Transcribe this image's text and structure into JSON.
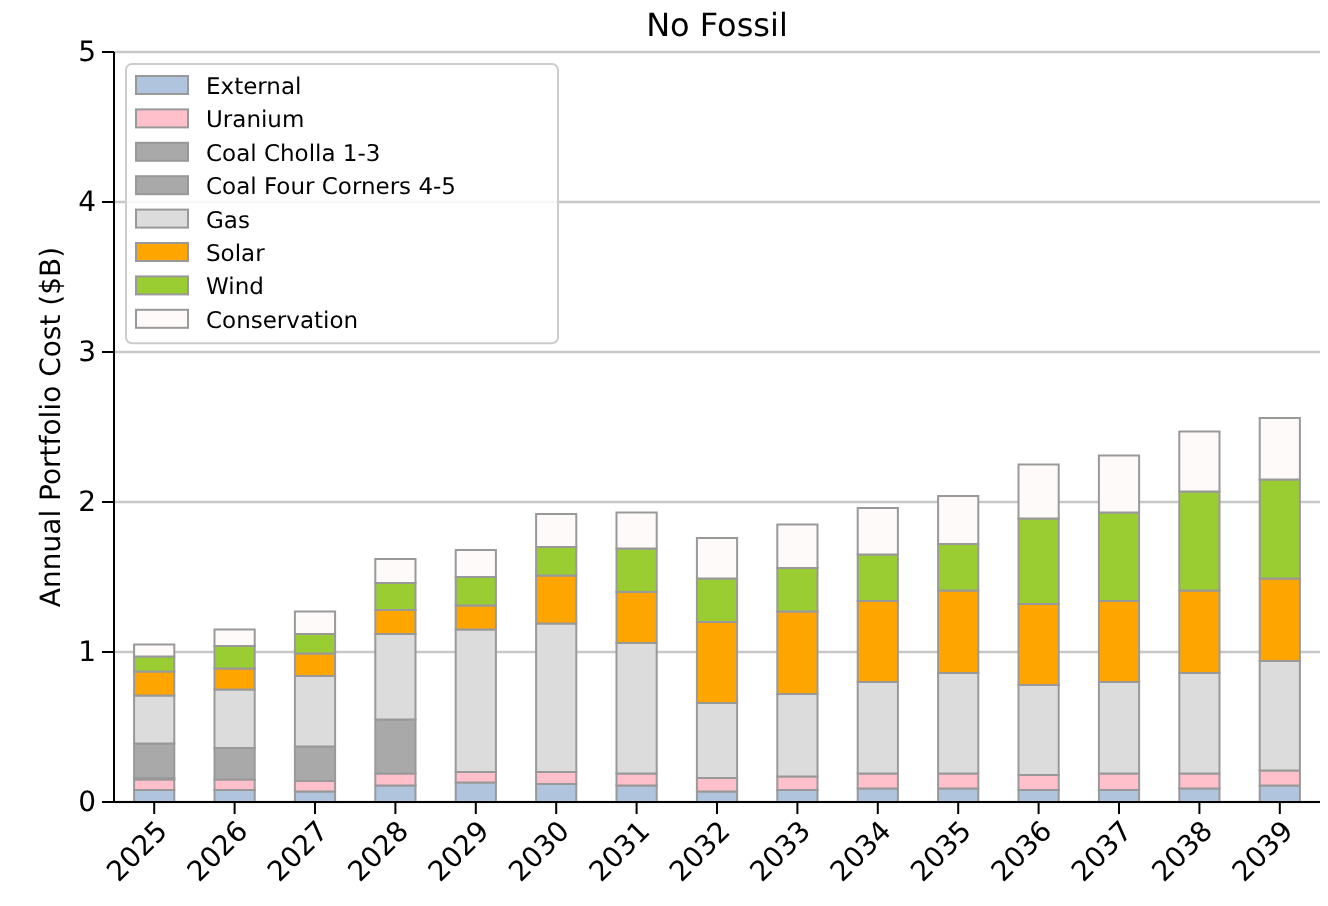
{
  "chart_data": {
    "type": "bar",
    "title": "No Fossil",
    "ylabel": "Annual Portfolio Cost ($B)",
    "stacked": true,
    "grid": "y",
    "legend": "top left",
    "categories": [
      "2025",
      "2026",
      "2027",
      "2028",
      "2029",
      "2030",
      "2031",
      "2032",
      "2033",
      "2034",
      "2035",
      "2036",
      "2037",
      "2038",
      "2039"
    ],
    "ylim": [
      0,
      5
    ],
    "yticks": [
      0,
      1,
      2,
      3,
      4,
      5
    ],
    "series": [
      {
        "name": "External",
        "color": "#b0c4de",
        "values": [
          0.08,
          0.08,
          0.07,
          0.11,
          0.13,
          0.12,
          0.11,
          0.07,
          0.08,
          0.09,
          0.09,
          0.08,
          0.08,
          0.09,
          0.11
        ]
      },
      {
        "name": "Uranium",
        "color": "#ffc0cb",
        "values": [
          0.07,
          0.07,
          0.07,
          0.08,
          0.07,
          0.08,
          0.08,
          0.09,
          0.09,
          0.1,
          0.1,
          0.1,
          0.11,
          0.1,
          0.1
        ]
      },
      {
        "name": "Coal Cholla 1-3",
        "color": "#a9a9a9",
        "values": [
          0.01,
          0,
          0,
          0,
          0,
          0,
          0,
          0,
          0,
          0,
          0,
          0,
          0,
          0,
          0
        ]
      },
      {
        "name": "Coal Four Corners 4-5",
        "color": "#a9a9a9",
        "values": [
          0.23,
          0.21,
          0.23,
          0.36,
          0,
          0,
          0,
          0,
          0,
          0,
          0,
          0,
          0,
          0,
          0
        ]
      },
      {
        "name": "Gas",
        "color": "#dcdcdc",
        "values": [
          0.32,
          0.39,
          0.47,
          0.57,
          0.95,
          0.99,
          0.87,
          0.5,
          0.55,
          0.61,
          0.67,
          0.6,
          0.61,
          0.67,
          0.73
        ]
      },
      {
        "name": "Solar",
        "color": "#ffa500",
        "values": [
          0.16,
          0.14,
          0.15,
          0.16,
          0.16,
          0.32,
          0.34,
          0.54,
          0.55,
          0.54,
          0.55,
          0.54,
          0.54,
          0.55,
          0.55
        ]
      },
      {
        "name": "Wind",
        "color": "#9acd32",
        "values": [
          0.1,
          0.15,
          0.13,
          0.18,
          0.19,
          0.19,
          0.29,
          0.29,
          0.29,
          0.31,
          0.31,
          0.57,
          0.59,
          0.66,
          0.66
        ]
      },
      {
        "name": "Conservation",
        "color": "#fffafa",
        "values": [
          0.08,
          0.11,
          0.15,
          0.16,
          0.18,
          0.22,
          0.24,
          0.27,
          0.29,
          0.31,
          0.32,
          0.36,
          0.38,
          0.4,
          0.41
        ]
      }
    ]
  }
}
